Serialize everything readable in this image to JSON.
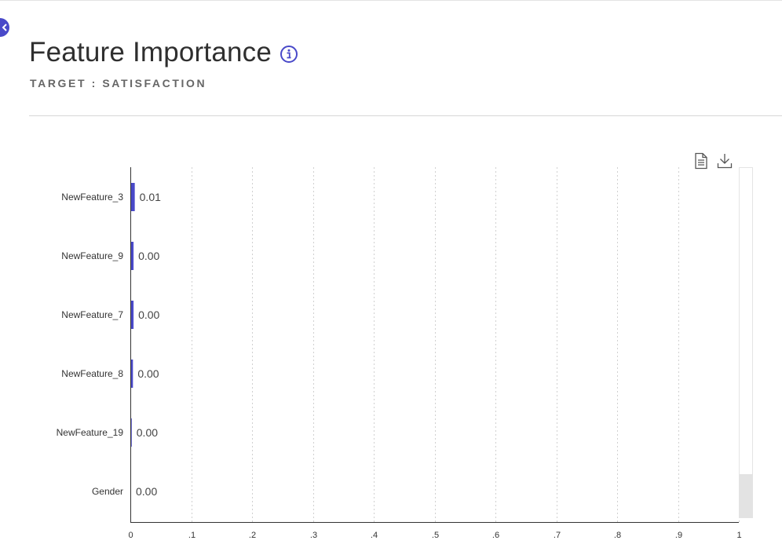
{
  "page": {
    "title": "Feature Importance",
    "subtitle": "TARGET : SATISFACTION"
  },
  "icons": {
    "collapse": "chevron-left-icon",
    "info": "info-icon",
    "document": "document-icon",
    "download": "download-icon"
  },
  "colors": {
    "accent": "#4949c9",
    "bar": "#4949c9",
    "axis": "#333333",
    "grid": "#d0d0d0",
    "text": "#333333"
  },
  "chart_data": {
    "type": "bar",
    "orientation": "horizontal",
    "categories": [
      "NewFeature_3",
      "NewFeature_9",
      "NewFeature_7",
      "NewFeature_8",
      "NewFeature_19",
      "Gender"
    ],
    "values": [
      0.006,
      0.004,
      0.004,
      0.003,
      0.001,
      0.0
    ],
    "data_labels": [
      "0.01",
      "0.00",
      "0.00",
      "0.00",
      "0.00",
      "0.00"
    ],
    "xlim": [
      0,
      1
    ],
    "xticks": [
      0,
      0.1,
      0.2,
      0.3,
      0.4,
      0.5,
      0.6,
      0.7,
      0.8,
      0.9,
      1
    ],
    "xtick_labels": [
      "0",
      ".1",
      ".2",
      ".3",
      ".4",
      ".5",
      ".6",
      ".7",
      ".8",
      ".9",
      "1"
    ],
    "grid": "vertical dotted",
    "legend": "none"
  }
}
